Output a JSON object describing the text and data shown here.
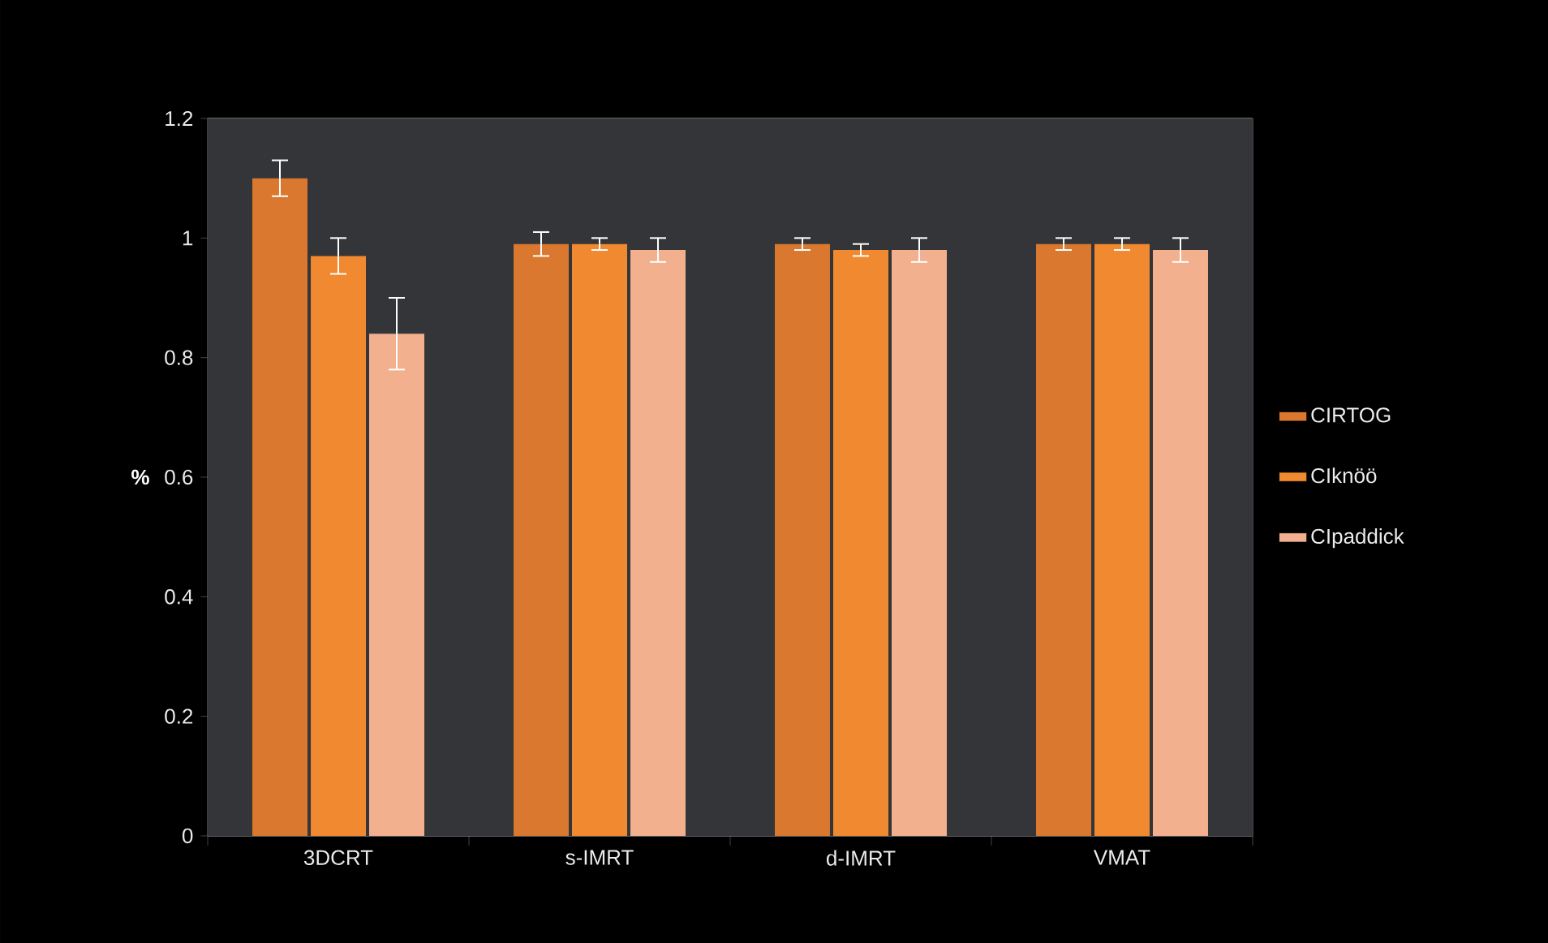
{
  "chart_data": {
    "type": "bar",
    "ylabel": "%",
    "categories": [
      "3DCRT",
      "s-IMRT",
      "d-IMRT",
      "VMAT"
    ],
    "series": [
      {
        "name": "CIRTOG",
        "color": "#d9782e",
        "values": [
          1.1,
          0.99,
          0.99,
          0.99
        ],
        "errors": [
          0.03,
          0.02,
          0.01,
          0.01
        ]
      },
      {
        "name": "CIknöö",
        "color": "#f0892f",
        "values": [
          0.97,
          0.99,
          0.98,
          0.99
        ],
        "errors": [
          0.03,
          0.01,
          0.01,
          0.01
        ]
      },
      {
        "name": "CIpaddick",
        "color": "#f2b08e",
        "values": [
          0.84,
          0.98,
          0.98,
          0.98
        ],
        "errors": [
          0.06,
          0.02,
          0.02,
          0.02
        ]
      }
    ],
    "ylim": [
      0,
      1.2
    ],
    "yticks": [
      0,
      0.2,
      0.4,
      0.6,
      0.8,
      1,
      1.2
    ],
    "grid": "y",
    "legend": "right"
  }
}
